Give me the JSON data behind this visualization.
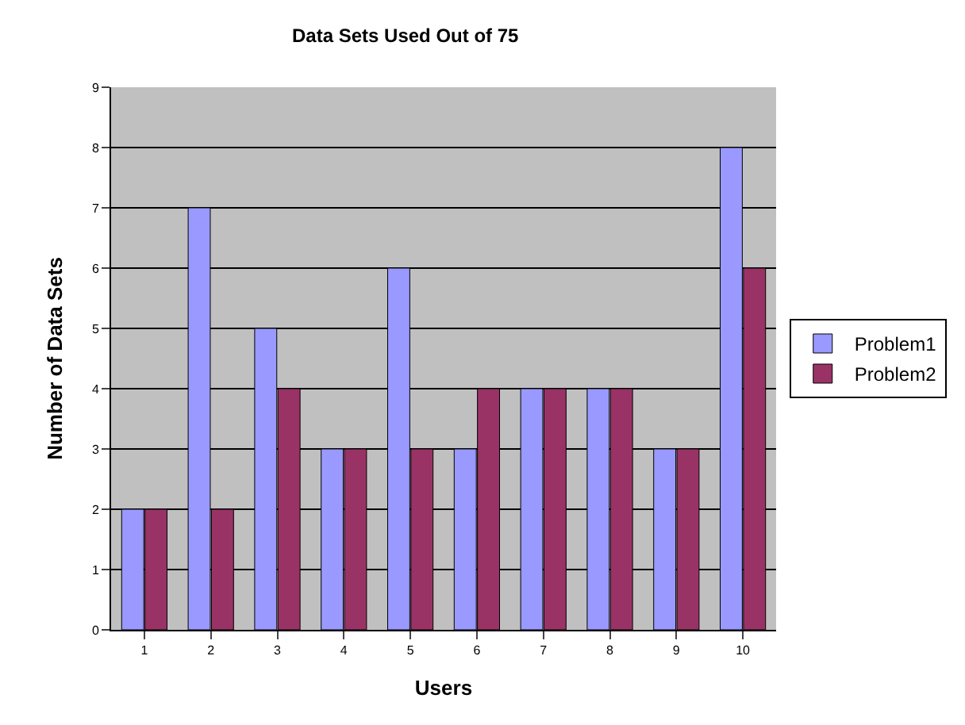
{
  "chart_data": {
    "type": "bar",
    "title": "Data Sets Used Out of 75",
    "xlabel": "Users",
    "ylabel": "Number of Data Sets",
    "categories": [
      "1",
      "2",
      "3",
      "4",
      "5",
      "6",
      "7",
      "8",
      "9",
      "10"
    ],
    "series": [
      {
        "name": "Problem1",
        "color": "#9999ff",
        "values": [
          2,
          7,
          5,
          3,
          6,
          3,
          4,
          4,
          3,
          8
        ]
      },
      {
        "name": "Problem2",
        "color": "#993366",
        "values": [
          2,
          2,
          4,
          3,
          3,
          4,
          4,
          4,
          3,
          6
        ]
      }
    ],
    "ylim": [
      0,
      9
    ],
    "yticks": [
      0,
      1,
      2,
      3,
      4,
      5,
      6,
      7,
      8,
      9
    ],
    "grid": "y",
    "legend": "right"
  }
}
